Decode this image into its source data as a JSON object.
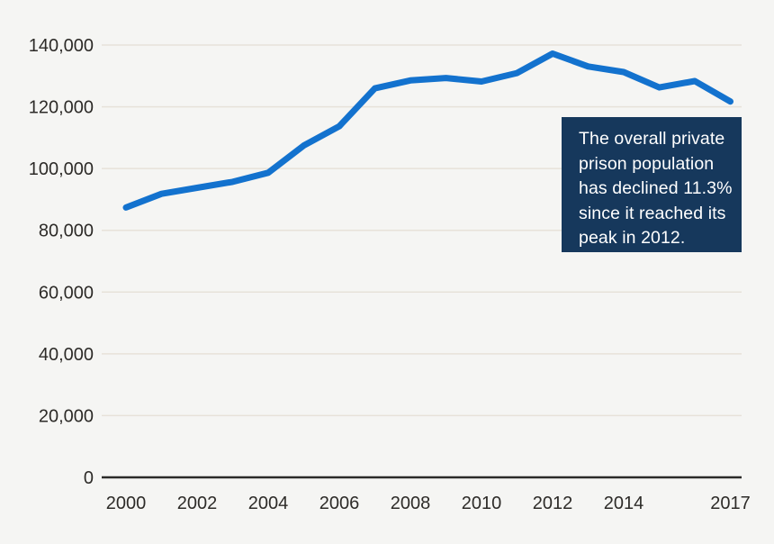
{
  "chart_data": {
    "type": "line",
    "title": "",
    "x": [
      2000,
      2001,
      2002,
      2003,
      2004,
      2005,
      2006,
      2007,
      2008,
      2009,
      2010,
      2011,
      2012,
      2013,
      2014,
      2015,
      2016,
      2017
    ],
    "series": [
      {
        "name": "Private prison population",
        "values": [
          87369,
          91828,
          93771,
          95707,
          98628,
          107447,
          113697,
          125975,
          128524,
          129336,
          128195,
          130941,
          137220,
          133044,
          131261,
          126272,
          128323,
          121718
        ]
      }
    ],
    "xlabel": "",
    "ylabel": "",
    "xlim": [
      2000,
      2017
    ],
    "ylim": [
      0,
      140000
    ],
    "xticks": [
      2000,
      2002,
      2004,
      2006,
      2008,
      2010,
      2012,
      2014,
      2017
    ],
    "xtick_labels": [
      "2000",
      "2002",
      "2004",
      "2006",
      "2008",
      "2010",
      "2012",
      "2014",
      "2017"
    ],
    "yticks": [
      0,
      20000,
      40000,
      60000,
      80000,
      100000,
      120000,
      140000
    ],
    "ytick_labels": [
      "0",
      "20,000",
      "40,000",
      "60,000",
      "80,000",
      "100,000",
      "120,000",
      "140,000"
    ],
    "grid": "horizontal",
    "legend": "none",
    "colors": {
      "background": "#F5F5F3",
      "line": "#1372CE",
      "gridline": "#E7E2D9",
      "axis": "#2B2A28",
      "label": "#2D2B28"
    }
  },
  "callout": {
    "lines": [
      "The overall private",
      "prison population",
      "has declined 11.3%",
      "since it reached its",
      "peak in 2012."
    ],
    "background": "#16385C",
    "text_color": "#FFFFFF"
  }
}
